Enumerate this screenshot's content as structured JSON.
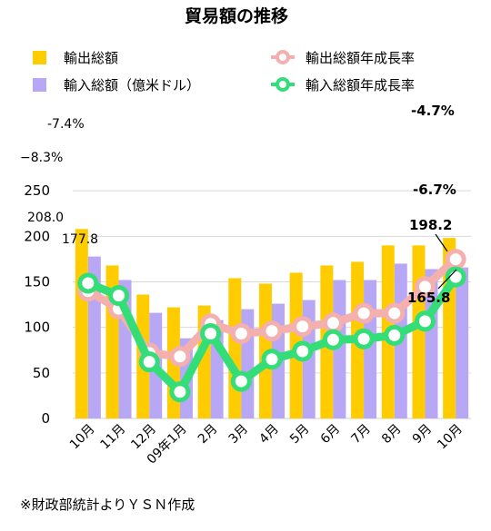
{
  "chart_data": {
    "type": "bar",
    "title": "貿易額の推移",
    "categories": [
      "10月",
      "11月",
      "12月",
      "09年1月",
      "2月",
      "3月",
      "4月",
      "5月",
      "6月",
      "7月",
      "8月",
      "9月",
      "10月"
    ],
    "series": [
      {
        "name": "輸出総額",
        "kind": "bar",
        "color": "#FFCC00",
        "values": [
          208.0,
          168,
          136,
          122,
          124,
          154,
          148,
          160,
          168,
          172,
          190,
          190,
          198.2
        ]
      },
      {
        "name": "輸入総額（億米ドル）",
        "kind": "bar",
        "color": "#B7A7F5",
        "values": [
          177.8,
          152,
          116,
          88,
          108,
          120,
          126,
          130,
          152,
          152,
          170,
          164,
          165.8
        ]
      },
      {
        "name": "輸出総額年成長率",
        "kind": "line",
        "color": "#F4AFAF",
        "values": [
          -8.3,
          -10.3,
          -15.3,
          -15.7,
          -12.0,
          -13.1,
          -12.8,
          -12.3,
          -11.9,
          -10.8,
          -10.8,
          -7.8,
          -4.7
        ]
      },
      {
        "name": "輸入総額年成長率",
        "kind": "line",
        "color": "#33DD77",
        "values": [
          -7.4,
          -8.8,
          -16.3,
          -19.7,
          -13.1,
          -18.5,
          -16.0,
          -15.1,
          -13.8,
          -13.7,
          -13.3,
          -11.7,
          -6.7
        ]
      }
    ],
    "ylim": [
      0,
      300
    ],
    "yticks": [
      0,
      50,
      100,
      150,
      200,
      250
    ],
    "line_range": [
      -22.7,
      8.2
    ],
    "data_labels": {
      "export_first": "208.0",
      "import_first": "177.8",
      "export_last": "198.2",
      "import_last": "165.8",
      "export_rate_first": "−8.3%",
      "import_rate_first": "-7.4%",
      "export_rate_last": "-4.7%",
      "import_rate_last": "-6.7%"
    },
    "grid": true,
    "legend_position": "top"
  },
  "footnote": "※財政部統計よりＹＳＮ作成"
}
